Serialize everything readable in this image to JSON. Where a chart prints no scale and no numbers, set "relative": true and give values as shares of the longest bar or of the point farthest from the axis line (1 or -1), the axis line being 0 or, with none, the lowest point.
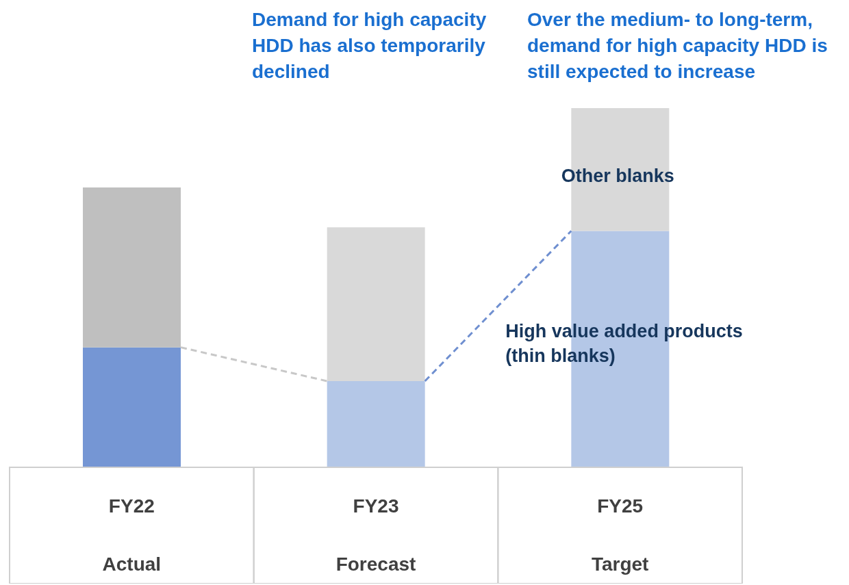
{
  "chart_data": {
    "type": "bar",
    "stacked": true,
    "relative": true,
    "categories": [
      "FY22\nActual",
      "FY23\nForecast",
      "FY25\nTarget"
    ],
    "series": [
      {
        "name": "High value added products (thin blanks)",
        "colors": [
          "#7596d4",
          "#b4c7e7",
          "#b4c7e7"
        ],
        "values": [
          0.334,
          0.24,
          0.658
        ]
      },
      {
        "name": "Other blanks",
        "colors": [
          "#bfbfbf",
          "#d9d9d9",
          "#d9d9d9"
        ],
        "values": [
          0.445,
          0.428,
          0.342
        ]
      }
    ],
    "annotations": [
      "Demand for high capacity HDD has also temporarily declined",
      "Over the medium- to long-term, demand for high capacity HDD is still expected to increase"
    ]
  }
}
